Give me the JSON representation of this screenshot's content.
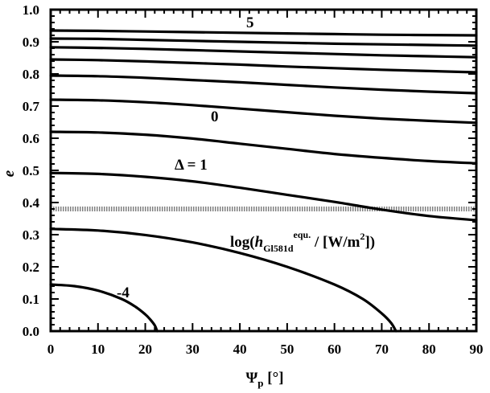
{
  "chart_data": {
    "type": "line",
    "xlabel": "Ψp [°]",
    "ylabel": "e",
    "xlim": [
      0,
      90
    ],
    "ylim": [
      0.0,
      1.0
    ],
    "xticks": [
      "0",
      "10",
      "20",
      "30",
      "40",
      "50",
      "60",
      "70",
      "80",
      "90"
    ],
    "yticks": [
      "0.0",
      "0.1",
      "0.2",
      "0.3",
      "0.4",
      "0.5",
      "0.6",
      "0.7",
      "0.8",
      "0.9",
      "1.0"
    ],
    "grid": false,
    "legend": "none",
    "annotations": {
      "label_5": "5",
      "label_0": "0",
      "label_delta": "Δ = 1",
      "label_minus4": "-4",
      "contour_title_prefix": "log(",
      "contour_title_h": "h",
      "contour_title_sub": "Gl581d",
      "contour_title_sup": "equ.",
      "contour_title_units": " / [W/m",
      "contour_title_units_sup": "2",
      "contour_title_end": "])"
    },
    "reference_line": {
      "y": 0.38,
      "style": "dotted-gray"
    },
    "series": [
      {
        "x": [
          0,
          10,
          20,
          30,
          40,
          50,
          60,
          70,
          80,
          90
        ],
        "y": [
          0.935,
          0.934,
          0.932,
          0.93,
          0.928,
          0.926,
          0.924,
          0.922,
          0.921,
          0.92
        ]
      },
      {
        "x": [
          0,
          10,
          20,
          30,
          40,
          50,
          60,
          70,
          80,
          90
        ],
        "y": [
          0.91,
          0.909,
          0.906,
          0.903,
          0.9,
          0.897,
          0.894,
          0.892,
          0.89,
          0.888
        ]
      },
      {
        "x": [
          0,
          10,
          20,
          30,
          40,
          50,
          60,
          70,
          80,
          90
        ],
        "y": [
          0.883,
          0.881,
          0.878,
          0.874,
          0.87,
          0.866,
          0.862,
          0.858,
          0.855,
          0.852
        ]
      },
      {
        "x": [
          0,
          10,
          20,
          30,
          40,
          50,
          60,
          70,
          80,
          90
        ],
        "y": [
          0.845,
          0.843,
          0.839,
          0.834,
          0.829,
          0.823,
          0.818,
          0.813,
          0.809,
          0.805
        ]
      },
      {
        "x": [
          0,
          10,
          20,
          30,
          40,
          50,
          60,
          70,
          80,
          90
        ],
        "y": [
          0.795,
          0.793,
          0.788,
          0.781,
          0.774,
          0.766,
          0.758,
          0.751,
          0.745,
          0.74
        ]
      },
      {
        "x": [
          0,
          10,
          20,
          30,
          40,
          50,
          60,
          70,
          80,
          90
        ],
        "y": [
          0.72,
          0.718,
          0.712,
          0.703,
          0.692,
          0.681,
          0.67,
          0.661,
          0.654,
          0.648
        ]
      },
      {
        "x": [
          0,
          10,
          20,
          30,
          40,
          50,
          60,
          70,
          80,
          90
        ],
        "y": [
          0.62,
          0.618,
          0.611,
          0.599,
          0.583,
          0.567,
          0.551,
          0.539,
          0.529,
          0.522
        ]
      },
      {
        "x": [
          0,
          10,
          20,
          30,
          40,
          50,
          60,
          70,
          80,
          90
        ],
        "y": [
          0.492,
          0.489,
          0.48,
          0.466,
          0.446,
          0.424,
          0.402,
          0.378,
          0.358,
          0.345
        ]
      },
      {
        "x": [
          0,
          10,
          20,
          30,
          40,
          50,
          60,
          66,
          70,
          72,
          73
        ],
        "y": [
          0.318,
          0.313,
          0.299,
          0.276,
          0.243,
          0.2,
          0.145,
          0.1,
          0.055,
          0.025,
          0.0
        ]
      },
      {
        "x": [
          0,
          5,
          10,
          15,
          18,
          20,
          21,
          22,
          22.5
        ],
        "y": [
          0.145,
          0.14,
          0.126,
          0.1,
          0.075,
          0.052,
          0.037,
          0.018,
          0.0
        ]
      }
    ]
  }
}
